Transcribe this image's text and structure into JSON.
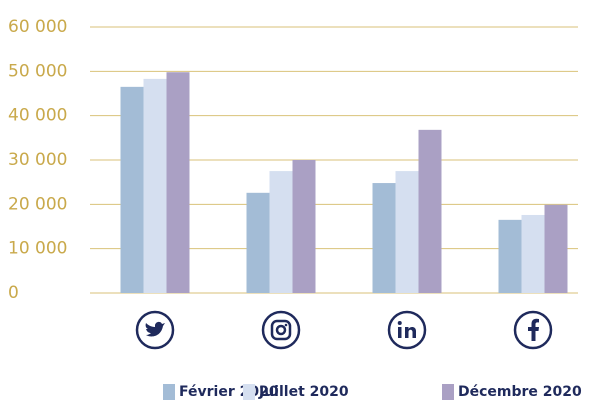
{
  "chart_data": {
    "type": "bar",
    "categories": [
      null,
      null,
      null,
      null
    ],
    "series": [
      {
        "name": "Février 2020",
        "color": "#a3bcd6",
        "values": [
          46500,
          22600,
          24800,
          16500
        ]
      },
      {
        "name": "Juillet 2020",
        "color": "#d5dff0",
        "values": [
          48300,
          27500,
          27500,
          17600
        ]
      },
      {
        "name": "Décembre 2020",
        "color": "#aaa0c4",
        "values": [
          49800,
          30000,
          36800,
          19900
        ]
      }
    ],
    "ylim": [
      0,
      60000
    ],
    "yticks": [
      0,
      {
        "value": 10000,
        "label": "10 000"
      },
      {
        "value": 20000,
        "label": "20 000"
      },
      {
        "value": 30000,
        "label": "30 000"
      },
      {
        "value": 40000,
        "label": "40 000"
      },
      {
        "value": 50000,
        "label": "50 000"
      },
      {
        "value": 60000,
        "label": "60 000"
      }
    ],
    "grid": true,
    "legend": "bottom"
  }
}
